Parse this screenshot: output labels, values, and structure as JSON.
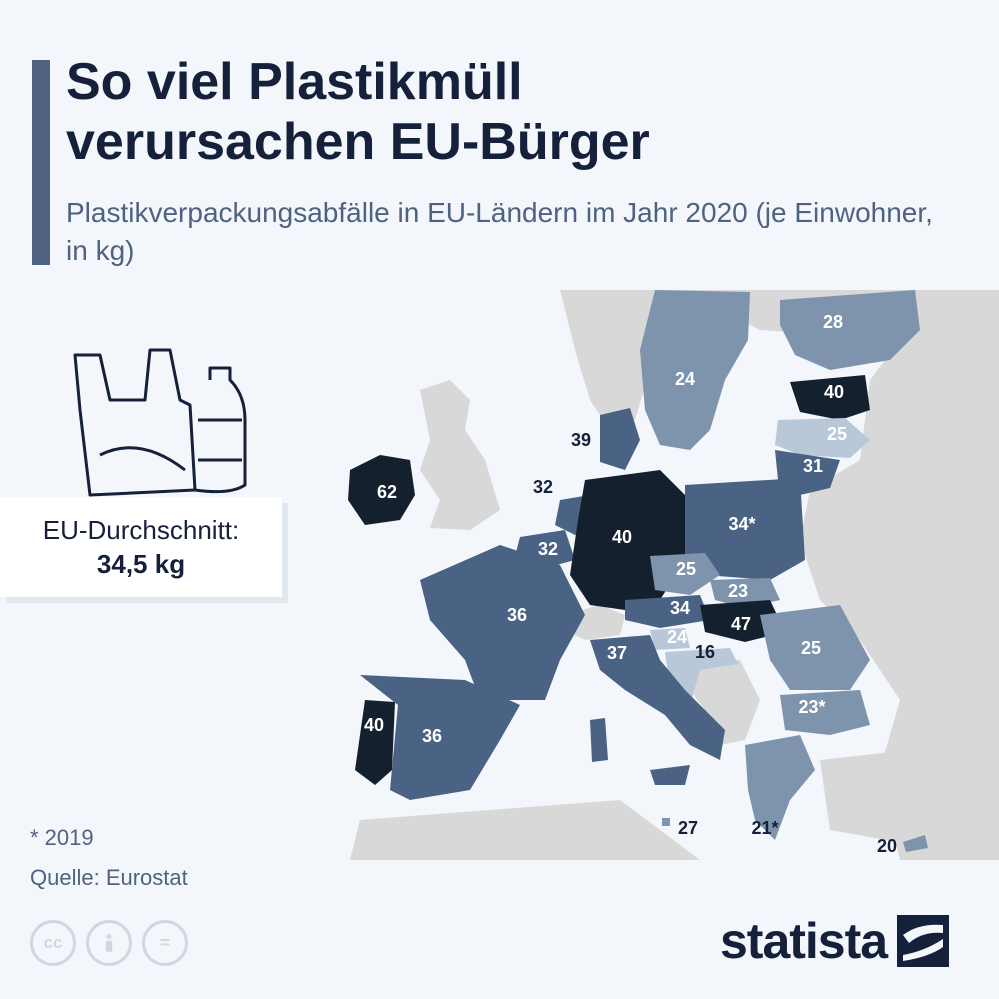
{
  "header": {
    "title": "So viel Plastikmüll verursachen EU-Bürger",
    "subtitle": "Plastikverpackungsabfälle in EU-Ländern im Jahr 2020 (je Einwohner, in kg)"
  },
  "average": {
    "label": "EU-Durchschnitt:",
    "value": "34,5 kg"
  },
  "map_values": {
    "finland": "28",
    "sweden": "24",
    "estonia": "40",
    "latvia": "25",
    "lithuania": "31",
    "denmark": "39",
    "ireland": "62",
    "netherlands": "32",
    "belgium": "32",
    "germany": "40",
    "poland": "34*",
    "czechia": "25",
    "slovakia": "23",
    "austria": "34",
    "hungary": "47",
    "slovenia": "24",
    "croatia": "16",
    "france": "36",
    "italy": "37",
    "romania": "25",
    "bulgaria": "23*",
    "portugal": "40",
    "spain": "36",
    "malta": "27",
    "greece": "21*",
    "cyprus": "20"
  },
  "colors": {
    "very_high": "#15202f",
    "high": "#4a6283",
    "medium": "#7e93ac",
    "low": "#b8c8d8",
    "non_eu": "#d8d8d8",
    "sea": "#f3f6fa",
    "title": "#15213a",
    "accent": "#4f6381"
  },
  "footer": {
    "footnote": "* 2019",
    "source": "Quelle: Eurostat",
    "brand": "statista",
    "license_icons": [
      "cc-icon",
      "attribution-icon",
      "no-derivatives-icon"
    ]
  }
}
